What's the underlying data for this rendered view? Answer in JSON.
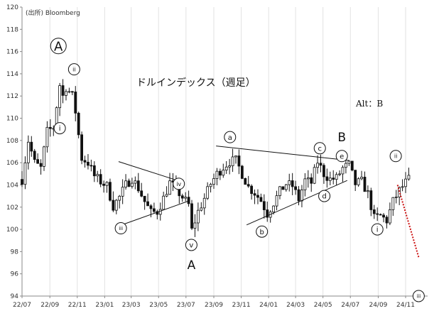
{
  "source_note": "(出所) Bloomberg",
  "chart_data": {
    "type": "candlestick",
    "title": "ドルインデックス（週足）",
    "alt_label": "Alt：B",
    "ylim": [
      94,
      120
    ],
    "y_ticks": [
      94,
      96,
      98,
      100,
      102,
      104,
      106,
      108,
      110,
      112,
      114,
      116,
      118,
      120
    ],
    "y_tick_labels": [
      "94",
      "96",
      "98",
      "100",
      "102",
      "104",
      "106",
      "108",
      "110",
      "112",
      "114",
      "116",
      "118",
      "120"
    ],
    "x_ticks": [
      {
        "date": "2022-07-01",
        "label": "22/07"
      },
      {
        "date": "2022-09-01",
        "label": "22/09"
      },
      {
        "date": "2022-11-01",
        "label": "22/11"
      },
      {
        "date": "2023-01-01",
        "label": "23/01"
      },
      {
        "date": "2023-03-01",
        "label": "23/03"
      },
      {
        "date": "2023-05-01",
        "label": "23/05"
      },
      {
        "date": "2023-07-01",
        "label": "23/07"
      },
      {
        "date": "2023-09-01",
        "label": "23/09"
      },
      {
        "date": "2023-11-01",
        "label": "23/11"
      },
      {
        "date": "2024-01-01",
        "label": "24/01"
      },
      {
        "date": "2024-03-01",
        "label": "24/03"
      },
      {
        "date": "2024-05-01",
        "label": "24/05"
      },
      {
        "date": "2024-07-01",
        "label": "24/07"
      },
      {
        "date": "2024-09-01",
        "label": "24/09"
      },
      {
        "date": "2024-11-01",
        "label": "24/11"
      }
    ],
    "x_range": [
      "2022-07-01",
      "2024-12-20"
    ],
    "grid": "vertical",
    "candle_colors": {
      "up": "#ffffff",
      "down": "#111111",
      "wick": "#111111"
    },
    "close_path": [
      [
        "2022-07-01",
        104.5
      ],
      [
        "2022-07-15",
        108.0
      ],
      [
        "2022-07-29",
        106.0
      ],
      [
        "2022-08-12",
        105.5
      ],
      [
        "2022-08-26",
        108.8
      ],
      [
        "2022-09-09",
        109.2
      ],
      [
        "2022-09-23",
        113.0
      ],
      [
        "2022-09-30",
        112.0
      ],
      [
        "2022-10-07",
        112.8
      ],
      [
        "2022-10-21",
        112.0
      ],
      [
        "2022-10-28",
        110.6
      ],
      [
        "2022-11-11",
        106.4
      ],
      [
        "2022-11-25",
        106.0
      ],
      [
        "2022-12-09",
        104.8
      ],
      [
        "2022-12-23",
        104.3
      ],
      [
        "2023-01-06",
        103.9
      ],
      [
        "2023-01-20",
        102.1
      ],
      [
        "2023-02-03",
        102.9
      ],
      [
        "2023-02-17",
        104.0
      ],
      [
        "2023-03-03",
        104.6
      ],
      [
        "2023-03-17",
        103.7
      ],
      [
        "2023-03-31",
        102.5
      ],
      [
        "2023-04-14",
        101.5
      ],
      [
        "2023-04-28",
        101.6
      ],
      [
        "2023-05-12",
        102.8
      ],
      [
        "2023-05-26",
        104.2
      ],
      [
        "2023-06-09",
        103.6
      ],
      [
        "2023-06-23",
        102.9
      ],
      [
        "2023-07-07",
        102.2
      ],
      [
        "2023-07-14",
        99.9
      ],
      [
        "2023-07-28",
        101.6
      ],
      [
        "2023-08-11",
        102.8
      ],
      [
        "2023-08-25",
        104.1
      ],
      [
        "2023-09-08",
        105.0
      ],
      [
        "2023-09-22",
        105.6
      ],
      [
        "2023-10-06",
        106.1
      ],
      [
        "2023-10-20",
        106.2
      ],
      [
        "2023-11-03",
        105.0
      ],
      [
        "2023-11-17",
        103.8
      ],
      [
        "2023-12-01",
        103.3
      ],
      [
        "2023-12-15",
        102.6
      ],
      [
        "2023-12-29",
        101.4
      ],
      [
        "2024-01-12",
        102.4
      ],
      [
        "2024-01-26",
        103.4
      ],
      [
        "2024-02-09",
        104.1
      ],
      [
        "2024-02-23",
        103.9
      ],
      [
        "2024-03-08",
        102.7
      ],
      [
        "2024-03-22",
        104.4
      ],
      [
        "2024-04-05",
        104.2
      ],
      [
        "2024-04-19",
        106.1
      ],
      [
        "2024-05-03",
        105.0
      ],
      [
        "2024-05-17",
        104.5
      ],
      [
        "2024-05-31",
        104.6
      ],
      [
        "2024-06-14",
        105.5
      ],
      [
        "2024-06-28",
        105.8
      ],
      [
        "2024-07-12",
        104.1
      ],
      [
        "2024-07-26",
        104.3
      ],
      [
        "2024-08-09",
        103.2
      ],
      [
        "2024-08-23",
        101.0
      ],
      [
        "2024-09-06",
        101.2
      ],
      [
        "2024-09-20",
        100.8
      ],
      [
        "2024-10-04",
        102.5
      ],
      [
        "2024-10-18",
        103.5
      ],
      [
        "2024-11-01",
        104.2
      ],
      [
        "2024-11-08",
        104.5
      ]
    ],
    "labels": {
      "A_top": "A",
      "A_bottom": "A",
      "B": "B",
      "i_1": "i",
      "ii_1": "ii",
      "iii_1": "iii",
      "iv": "iv",
      "v": "v",
      "a": "a",
      "b": "b",
      "c": "c",
      "d": "d",
      "e": "e",
      "i_2": "i",
      "ii_2": "ii",
      "iii_2": "iii"
    },
    "annotations": [
      {
        "id": "A_top",
        "style": "circle-large",
        "date": "2022-09-20",
        "value": 116.5
      },
      {
        "id": "i_1",
        "style": "circle",
        "date": "2022-09-23",
        "value": 109.1
      },
      {
        "id": "ii_1",
        "style": "circle",
        "date": "2022-10-25",
        "value": 114.4
      },
      {
        "id": "iii_1",
        "style": "circle",
        "date": "2023-02-06",
        "value": 100.1
      },
      {
        "id": "iv",
        "style": "circle",
        "date": "2023-06-15",
        "value": 104.1
      },
      {
        "id": "v",
        "style": "circle",
        "date": "2023-07-13",
        "value": 98.6
      },
      {
        "id": "A_bottom",
        "style": "plain",
        "date": "2023-07-13",
        "value": 96.8
      },
      {
        "id": "a",
        "style": "circle",
        "date": "2023-10-07",
        "value": 108.3
      },
      {
        "id": "b",
        "style": "circle",
        "date": "2023-12-17",
        "value": 99.8
      },
      {
        "id": "c",
        "style": "circle",
        "date": "2024-04-24",
        "value": 107.3
      },
      {
        "id": "d",
        "style": "circle",
        "date": "2024-05-04",
        "value": 103.0
      },
      {
        "id": "B",
        "style": "plain",
        "date": "2024-06-12",
        "value": 108.3
      },
      {
        "id": "e",
        "style": "circle",
        "date": "2024-06-12",
        "value": 106.6
      },
      {
        "id": "i_2",
        "style": "circle",
        "date": "2024-08-30",
        "value": 100.0
      },
      {
        "id": "ii_2",
        "style": "circle",
        "date": "2024-10-10",
        "value": 106.6
      },
      {
        "id": "iii_2",
        "style": "circle",
        "date": "2024-11-30",
        "value": 94.0
      }
    ],
    "trendlines": [
      {
        "id": "tri1-upper",
        "from": [
          "2023-02-01",
          106.1
        ],
        "to": [
          "2023-06-12",
          104.4
        ],
        "style": "solid"
      },
      {
        "id": "tri1-lower",
        "from": [
          "2023-02-01",
          100.3
        ],
        "to": [
          "2023-07-10",
          102.6
        ],
        "style": "solid"
      },
      {
        "id": "tri2-upper",
        "from": [
          "2023-09-06",
          107.5
        ],
        "to": [
          "2024-06-28",
          106.2
        ],
        "style": "solid"
      },
      {
        "id": "tri2-lower",
        "from": [
          "2023-11-13",
          100.4
        ],
        "to": [
          "2024-06-24",
          104.4
        ],
        "style": "solid"
      },
      {
        "id": "forecast",
        "from": [
          "2024-10-14",
          104.0
        ],
        "to": [
          "2024-11-30",
          97.5
        ],
        "style": "dotted",
        "color": "#cc1111"
      }
    ]
  }
}
